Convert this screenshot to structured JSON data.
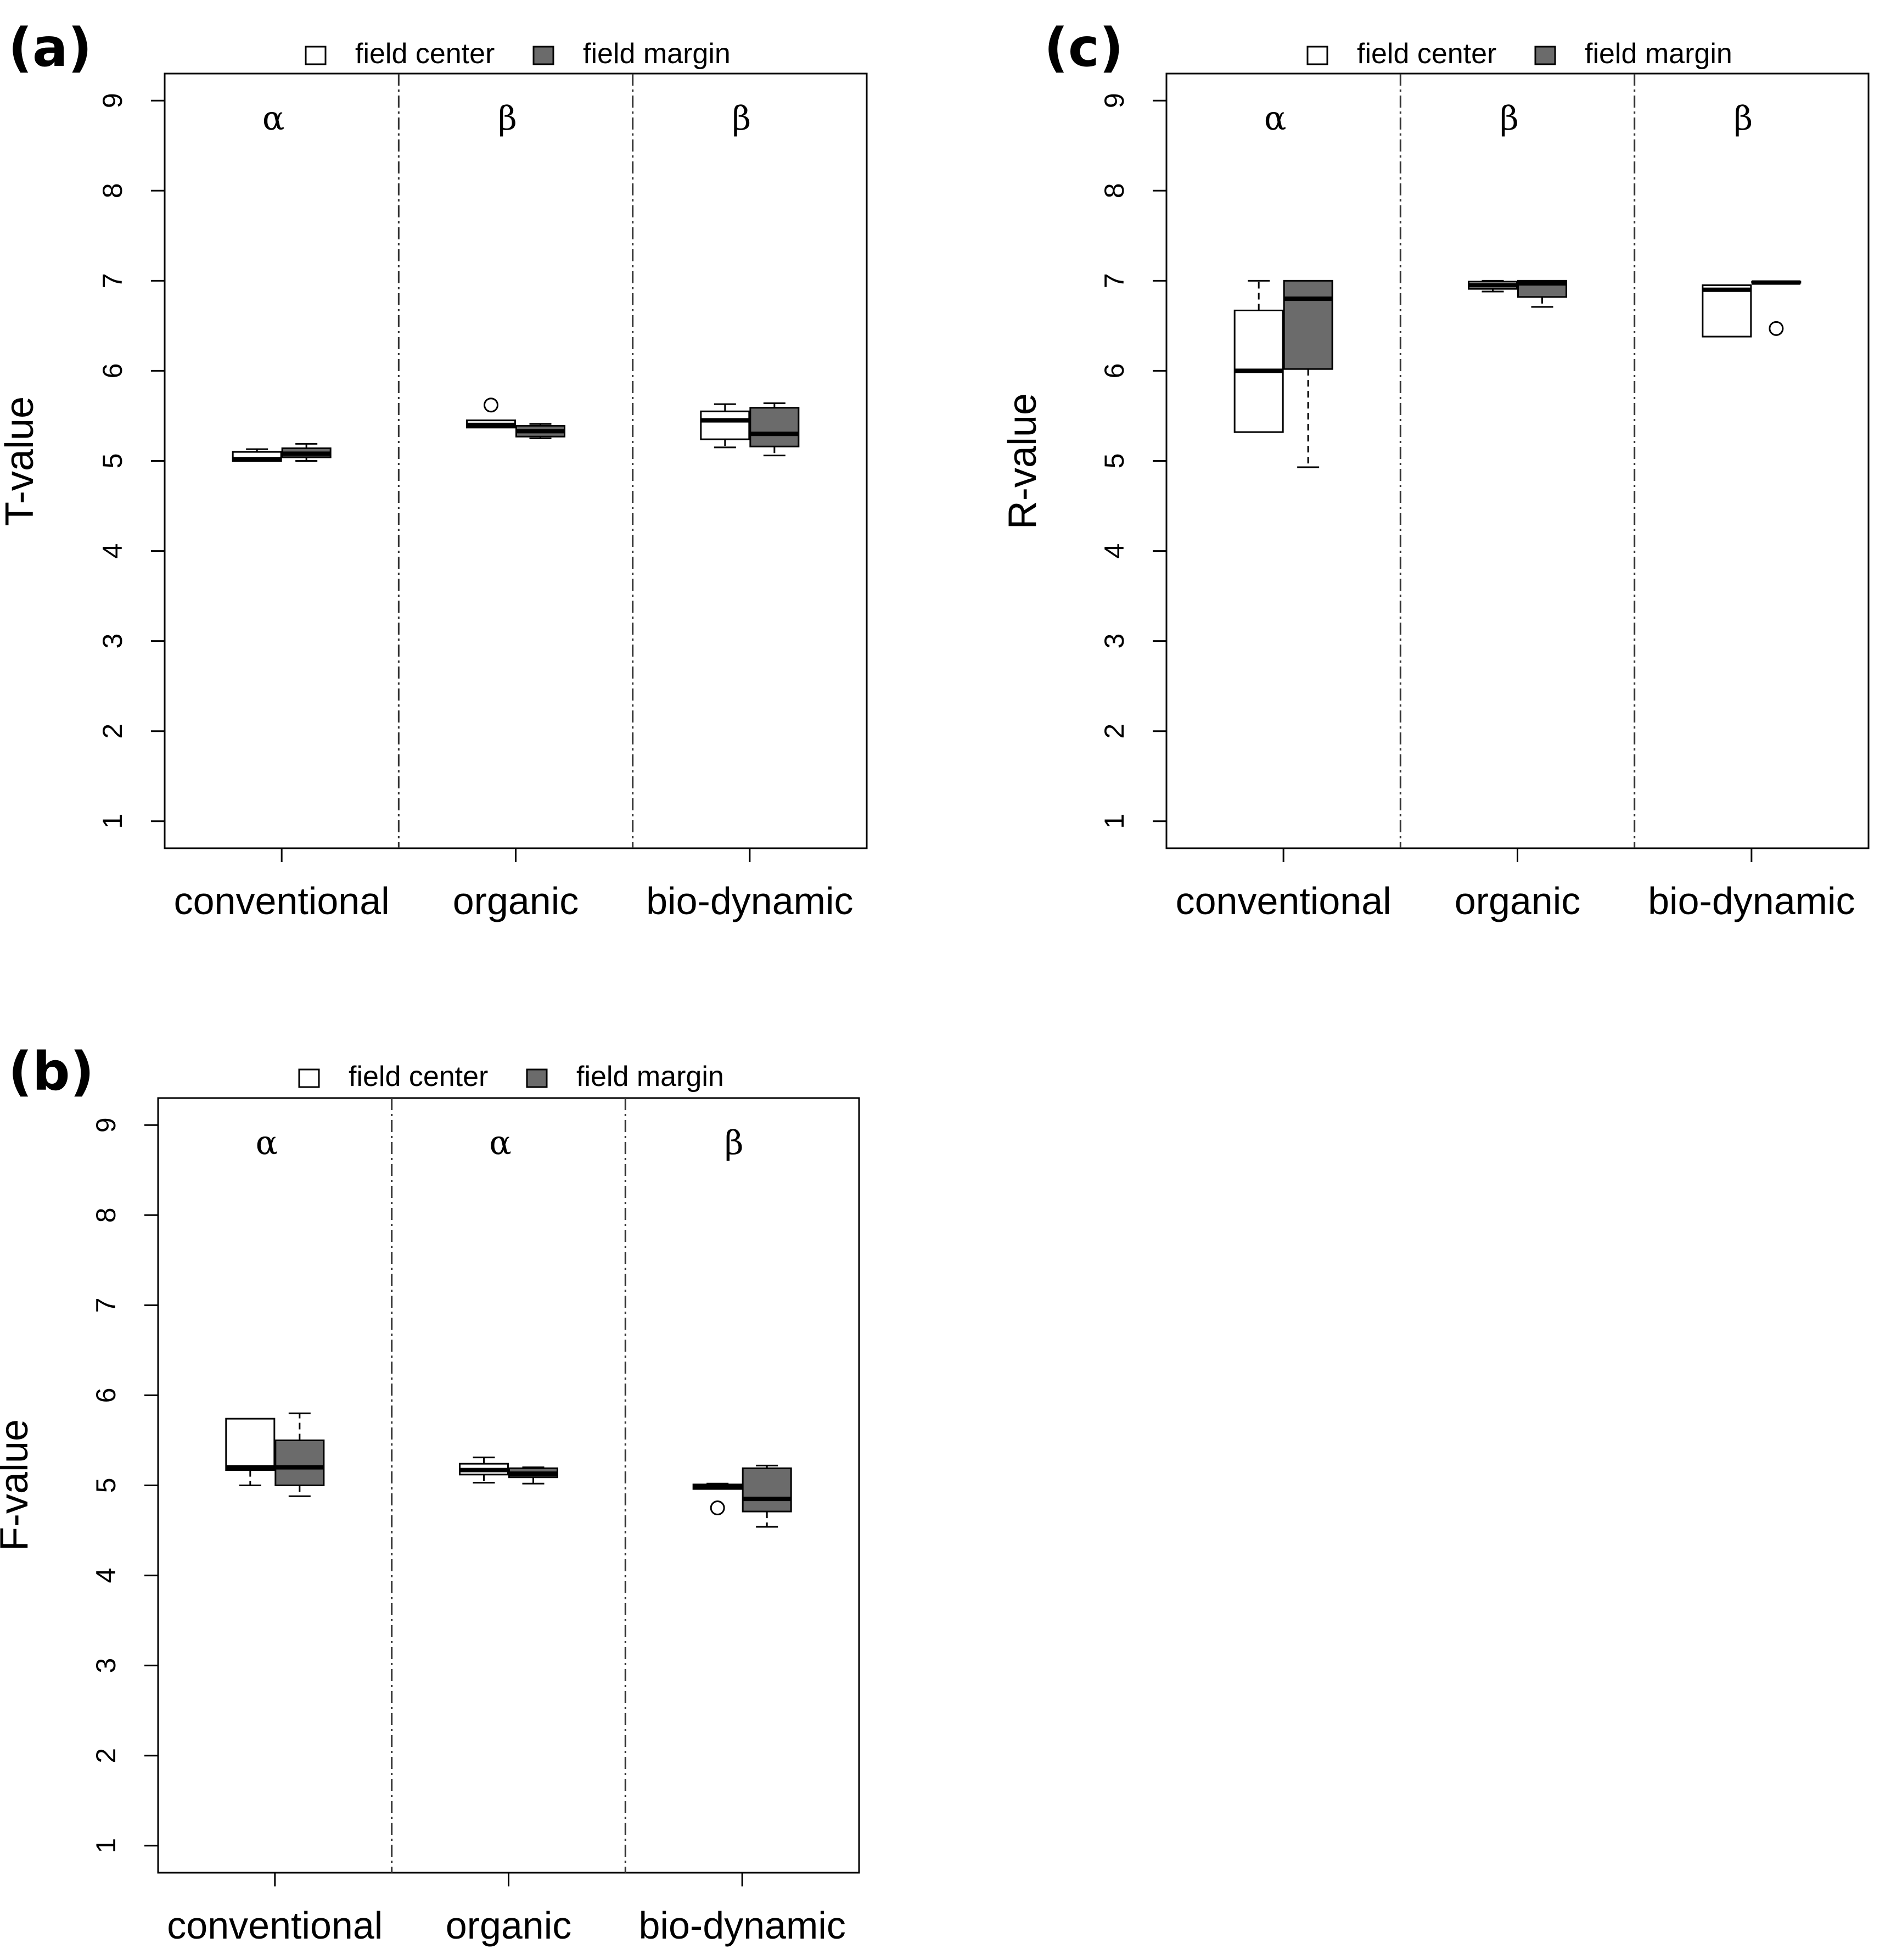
{
  "colors": {
    "field_center": "#ffffff",
    "field_margin": "#6b6b6b",
    "line": "#000000"
  },
  "categories": [
    "conventional",
    "organic",
    "bio-dynamic"
  ],
  "legend": {
    "field_center": "field center",
    "field_margin": "field margin"
  },
  "chart_data": [
    {
      "panel": "(a)",
      "type": "boxplot",
      "ylabel": "T-value",
      "ylim": [
        0.7,
        9.3
      ],
      "yticks": [
        1,
        2,
        3,
        4,
        5,
        6,
        7,
        8,
        9
      ],
      "categories": [
        "conventional",
        "organic",
        "bio-dynamic"
      ],
      "group_letters": [
        "α",
        "β",
        "β"
      ],
      "series": [
        {
          "name": "field center",
          "boxes": [
            {
              "min": 5.0,
              "q1": 5.0,
              "median": 5.02,
              "q3": 5.1,
              "max": 5.13,
              "outliers": []
            },
            {
              "min": 5.37,
              "q1": 5.37,
              "median": 5.4,
              "q3": 5.45,
              "max": 5.45,
              "outliers": [
                5.62
              ]
            },
            {
              "min": 5.15,
              "q1": 5.24,
              "median": 5.45,
              "q3": 5.55,
              "max": 5.63,
              "outliers": []
            }
          ]
        },
        {
          "name": "field margin",
          "boxes": [
            {
              "min": 5.0,
              "q1": 5.04,
              "median": 5.08,
              "q3": 5.14,
              "max": 5.19,
              "outliers": []
            },
            {
              "min": 5.25,
              "q1": 5.27,
              "median": 5.33,
              "q3": 5.39,
              "max": 5.41,
              "outliers": []
            },
            {
              "min": 5.06,
              "q1": 5.16,
              "median": 5.3,
              "q3": 5.59,
              "max": 5.64,
              "outliers": []
            }
          ]
        }
      ]
    },
    {
      "panel": "(b)",
      "type": "boxplot",
      "ylabel": "F-value",
      "ylim": [
        0.7,
        9.3
      ],
      "yticks": [
        1,
        2,
        3,
        4,
        5,
        6,
        7,
        8,
        9
      ],
      "categories": [
        "conventional",
        "organic",
        "bio-dynamic"
      ],
      "group_letters": [
        "α",
        "α",
        "β"
      ],
      "series": [
        {
          "name": "field center",
          "boxes": [
            {
              "min": 5.0,
              "q1": 5.17,
              "median": 5.2,
              "q3": 5.74,
              "max": 5.74,
              "outliers": []
            },
            {
              "min": 5.03,
              "q1": 5.12,
              "median": 5.17,
              "q3": 5.24,
              "max": 5.31,
              "outliers": []
            },
            {
              "min": 4.96,
              "q1": 4.96,
              "median": 4.98,
              "q3": 5.01,
              "max": 5.02,
              "outliers": [
                4.75
              ]
            }
          ]
        },
        {
          "name": "field margin",
          "boxes": [
            {
              "min": 4.88,
              "q1": 5.0,
              "median": 5.2,
              "q3": 5.5,
              "max": 5.8,
              "outliers": []
            },
            {
              "min": 5.02,
              "q1": 5.09,
              "median": 5.13,
              "q3": 5.19,
              "max": 5.2,
              "outliers": []
            },
            {
              "min": 4.54,
              "q1": 4.71,
              "median": 4.85,
              "q3": 5.19,
              "max": 5.22,
              "outliers": []
            }
          ]
        }
      ]
    },
    {
      "panel": "(c)",
      "type": "boxplot",
      "ylabel": "R-value",
      "ylim": [
        0.7,
        9.3
      ],
      "yticks": [
        1,
        2,
        3,
        4,
        5,
        6,
        7,
        8,
        9
      ],
      "categories": [
        "conventional",
        "organic",
        "bio-dynamic"
      ],
      "group_letters": [
        "α",
        "β",
        "β"
      ],
      "series": [
        {
          "name": "field center",
          "boxes": [
            {
              "min": 5.32,
              "q1": 5.32,
              "median": 6.0,
              "q3": 6.67,
              "max": 7.0,
              "outliers": []
            },
            {
              "min": 6.88,
              "q1": 6.91,
              "median": 6.95,
              "q3": 6.99,
              "max": 7.0,
              "outliers": []
            },
            {
              "min": 6.38,
              "q1": 6.38,
              "median": 6.9,
              "q3": 6.95,
              "max": 6.95,
              "outliers": []
            }
          ]
        },
        {
          "name": "field margin",
          "boxes": [
            {
              "min": 4.93,
              "q1": 6.02,
              "median": 6.8,
              "q3": 7.0,
              "max": 7.0,
              "outliers": []
            },
            {
              "min": 6.71,
              "q1": 6.82,
              "median": 6.97,
              "q3": 7.0,
              "max": 7.0,
              "outliers": []
            },
            {
              "min": 6.98,
              "q1": 6.98,
              "median": 6.98,
              "q3": 6.99,
              "max": 6.99,
              "outliers": [
                6.47
              ]
            }
          ]
        }
      ]
    }
  ]
}
